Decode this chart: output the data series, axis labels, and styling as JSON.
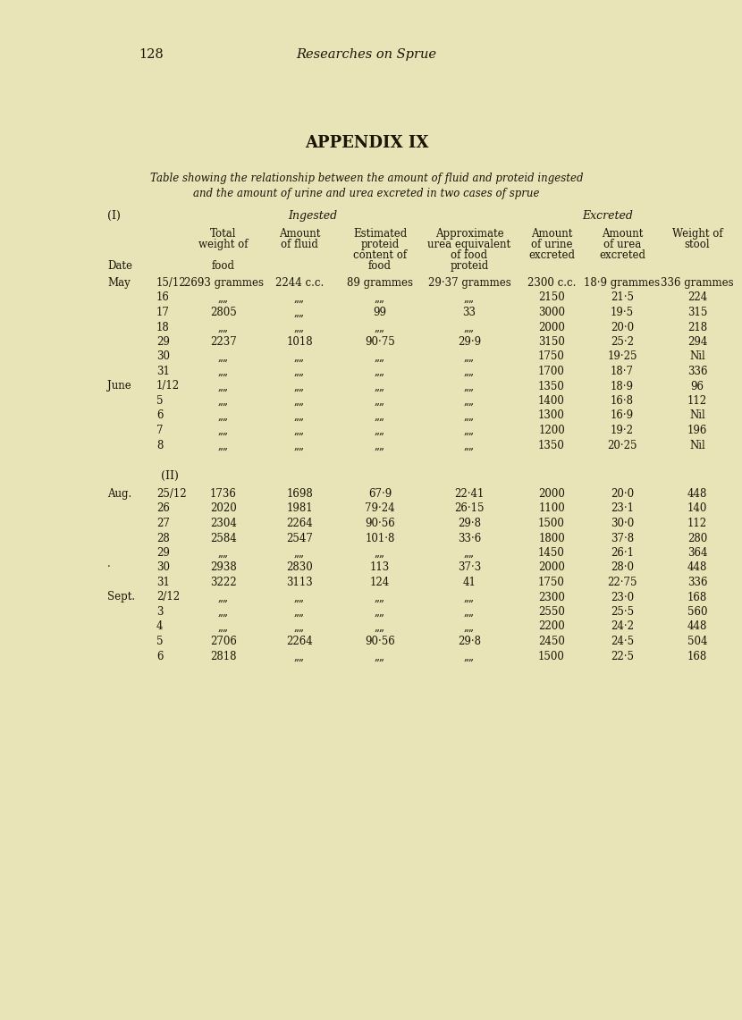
{
  "page_number": "128",
  "page_title": "Researches on Sprue",
  "appendix_title": "APPENDIX IX",
  "subtitle_line1": "Table showing the relationship between the amount of fluid and proteid ingested",
  "subtitle_line2": "and the amount of urine and urea excreted in two cases of sprue",
  "section_I_label": "(I)",
  "ingested_label": "Ingested",
  "excreted_label": "Excreted",
  "section_II_label": "(II)",
  "rows_I": [
    {
      "month": "May",
      "day": "15/12",
      "total": "2693 grammes",
      "fluid": "2244 c.c.",
      "proteid": "89 grammes",
      "urea_eq": "29·37 grammes",
      "urine": "2300 c.c.",
      "urea": "18·9 grammes",
      "stool": "336 grammes"
    },
    {
      "month": "",
      "day": "16",
      "total": "„„",
      "fluid": "„„",
      "proteid": "„„",
      "urea_eq": "„„",
      "urine": "2150",
      "urea": "21·5",
      "stool": "224"
    },
    {
      "month": "",
      "day": "17",
      "total": "2805",
      "fluid": "„„",
      "proteid": "99",
      "urea_eq": "33",
      "urine": "3000",
      "urea": "19·5",
      "stool": "315"
    },
    {
      "month": "",
      "day": "18",
      "total": "„„",
      "fluid": "„„",
      "proteid": "„„",
      "urea_eq": "„„",
      "urine": "2000",
      "urea": "20·0",
      "stool": "218"
    },
    {
      "month": "",
      "day": "29",
      "total": "2237",
      "fluid": "1018",
      "proteid": "90·75",
      "urea_eq": "29·9",
      "urine": "3150",
      "urea": "25·2",
      "stool": "294"
    },
    {
      "month": "",
      "day": "30",
      "total": "„„",
      "fluid": "„„",
      "proteid": "„„",
      "urea_eq": "„„",
      "urine": "1750",
      "urea": "19·25",
      "stool": "Nil"
    },
    {
      "month": "",
      "day": "31",
      "total": "„„",
      "fluid": "„„",
      "proteid": "„„",
      "urea_eq": "„„",
      "urine": "1700",
      "urea": "18·7",
      "stool": "336"
    },
    {
      "month": "June",
      "day": "1/12",
      "total": "„„",
      "fluid": "„„",
      "proteid": "„„",
      "urea_eq": "„„",
      "urine": "1350",
      "urea": "18·9",
      "stool": "96"
    },
    {
      "month": "",
      "day": "5",
      "total": "„„",
      "fluid": "„„",
      "proteid": "„„",
      "urea_eq": "„„",
      "urine": "1400",
      "urea": "16·8",
      "stool": "112"
    },
    {
      "month": "",
      "day": "6",
      "total": "„„",
      "fluid": "„„",
      "proteid": "„„",
      "urea_eq": "„„",
      "urine": "1300",
      "urea": "16·9",
      "stool": "Nil"
    },
    {
      "month": "",
      "day": "7",
      "total": "„„",
      "fluid": "„„",
      "proteid": "„„",
      "urea_eq": "„„",
      "urine": "1200",
      "urea": "19·2",
      "stool": "196"
    },
    {
      "month": "",
      "day": "8",
      "total": "„„",
      "fluid": "„„",
      "proteid": "„„",
      "urea_eq": "„„",
      "urine": "1350",
      "urea": "20·25",
      "stool": "Nil"
    }
  ],
  "rows_II": [
    {
      "month": "Aug.",
      "day": "25/12",
      "total": "1736",
      "fluid": "1698",
      "proteid": "67·9",
      "urea_eq": "22·41",
      "urine": "2000",
      "urea": "20·0",
      "stool": "448"
    },
    {
      "month": "",
      "day": "26",
      "total": "2020",
      "fluid": "1981",
      "proteid": "79·24",
      "urea_eq": "26·15",
      "urine": "1100",
      "urea": "23·1",
      "stool": "140"
    },
    {
      "month": "",
      "day": "27",
      "total": "2304",
      "fluid": "2264",
      "proteid": "90·56",
      "urea_eq": "29·8",
      "urine": "1500",
      "urea": "30·0",
      "stool": "112"
    },
    {
      "month": "",
      "day": "28",
      "total": "2584",
      "fluid": "2547",
      "proteid": "101·8",
      "urea_eq": "33·6",
      "urine": "1800",
      "urea": "37·8",
      "stool": "280"
    },
    {
      "month": "",
      "day": "29",
      "total": "„„",
      "fluid": "„„",
      "proteid": "„„",
      "urea_eq": "„„",
      "urine": "1450",
      "urea": "26·1",
      "stool": "364"
    },
    {
      "month": "·",
      "day": "30",
      "total": "2938",
      "fluid": "2830",
      "proteid": "113",
      "urea_eq": "37·3",
      "urine": "2000",
      "urea": "28·0",
      "stool": "448"
    },
    {
      "month": "",
      "day": "31",
      "total": "3222",
      "fluid": "3113",
      "proteid": "124",
      "urea_eq": "41",
      "urine": "1750",
      "urea": "22·75",
      "stool": "336"
    },
    {
      "month": "Sept.",
      "day": "2/12",
      "total": "„„",
      "fluid": "„„",
      "proteid": "„„",
      "urea_eq": "„„",
      "urine": "2300",
      "urea": "23·0",
      "stool": "168"
    },
    {
      "month": "",
      "day": "3",
      "total": "„„",
      "fluid": "„„",
      "proteid": "„„",
      "urea_eq": "„„",
      "urine": "2550",
      "urea": "25·5",
      "stool": "560"
    },
    {
      "month": "",
      "day": "4",
      "total": "„„",
      "fluid": "„„",
      "proteid": "„„",
      "urea_eq": "„„",
      "urine": "2200",
      "urea": "24·2",
      "stool": "448"
    },
    {
      "month": "",
      "day": "5",
      "total": "2706",
      "fluid": "2264",
      "proteid": "90·56",
      "urea_eq": "29·8",
      "urine": "2450",
      "urea": "24·5",
      "stool": "504"
    },
    {
      "month": "",
      "day": "6",
      "total": "2818",
      "fluid": "„„",
      "proteid": "„„",
      "urea_eq": "„„",
      "urine": "1500",
      "urea": "22·5",
      "stool": "168"
    }
  ],
  "bg_color": "#e8e4b8",
  "text_color": "#1a1505",
  "font_size": 8.5,
  "header_font_size": 8.5,
  "title_font_size": 10.5,
  "appendix_font_size": 13,
  "subtitle_font_size": 8.5
}
